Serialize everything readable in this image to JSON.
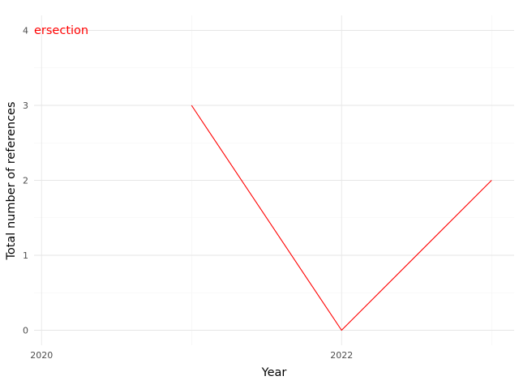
{
  "chart_data": {
    "type": "line",
    "xlabel": "Year",
    "ylabel": "Total number of references",
    "x": [
      2021,
      2022,
      2023
    ],
    "series": [
      {
        "values": [
          3,
          0,
          2
        ],
        "color": "#ff0000"
      }
    ],
    "xlim": [
      2019.95,
      2023.15
    ],
    "ylim": [
      -0.2,
      4.2
    ],
    "x_ticks": [
      2020,
      2022
    ],
    "y_ticks": [
      0,
      1,
      2,
      3,
      4
    ],
    "grid": true,
    "annotation": {
      "text": "ersection",
      "color": "#ff0000"
    }
  }
}
